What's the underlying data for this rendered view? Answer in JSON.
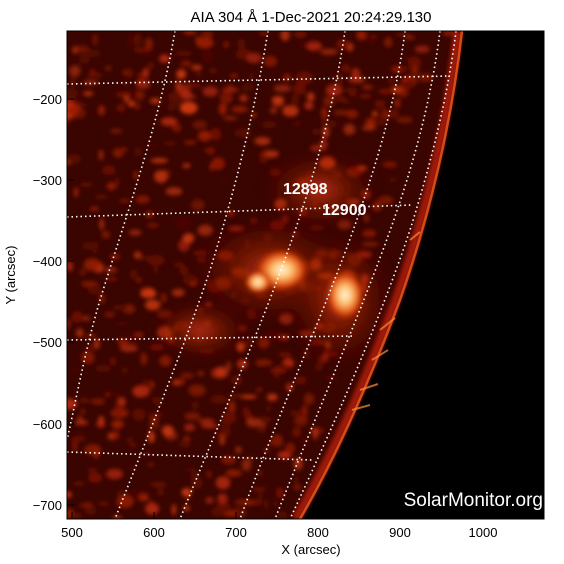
{
  "image": {
    "title": "AIA 304 Å  1-Dec-2021  20:24:29.130",
    "watermark": "SolarMonitor.org",
    "xlabel": "X (arcsec)",
    "ylabel": "Y (arcsec)",
    "x_ticks": [
      "500",
      "600",
      "700",
      "800",
      "900",
      "1000"
    ],
    "y_ticks": [
      "−200",
      "−300",
      "−400",
      "−500",
      "−600",
      "−700"
    ],
    "active_regions": [
      {
        "label": "12898"
      },
      {
        "label": "12900"
      }
    ],
    "colors": {
      "background": "#000000",
      "disk": "#3a0500",
      "plage": "#c8300a",
      "bright_core": "#fff2d0",
      "grid": "#ffffff",
      "frame": "#000000"
    }
  }
}
